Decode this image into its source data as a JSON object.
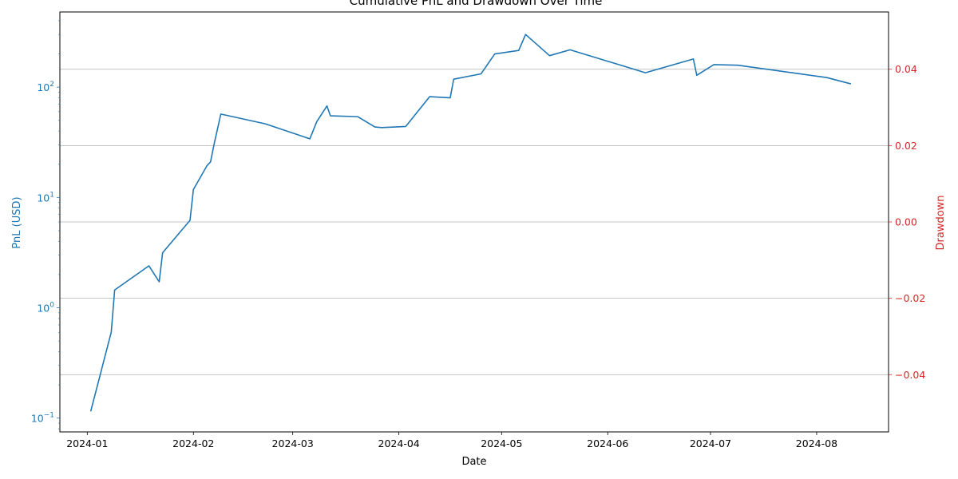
{
  "chart_data": {
    "type": "line",
    "title": "Cumulative PnL and Drawdown Over Time",
    "xlabel": "Date",
    "ylabel_left": "PnL (USD)",
    "ylabel_right": "Drawdown",
    "left_axis_scale": "log",
    "left_axis_color": "#1f77b4",
    "right_axis_color": "#d62728",
    "grid": "horizontal, right axis",
    "xlim": [
      "2023-12-24",
      "2024-08-22"
    ],
    "ylim_left": [
      0.075,
      480
    ],
    "ylim_right": [
      -0.055,
      0.055
    ],
    "x_ticks": [
      "2024-01",
      "2024-02",
      "2024-03",
      "2024-04",
      "2024-05",
      "2024-06",
      "2024-07",
      "2024-08"
    ],
    "y_ticks_left": [
      {
        "value": 0.1,
        "base": "10",
        "exp": "−1"
      },
      {
        "value": 1,
        "base": "10",
        "exp": "0"
      },
      {
        "value": 10,
        "base": "10",
        "exp": "1"
      },
      {
        "value": 100,
        "base": "10",
        "exp": "2"
      }
    ],
    "y_ticks_right": [
      {
        "value": -0.04,
        "label": "−0.04"
      },
      {
        "value": -0.02,
        "label": "−0.02"
      },
      {
        "value": 0.0,
        "label": "0.00"
      },
      {
        "value": 0.02,
        "label": "0.02"
      },
      {
        "value": 0.04,
        "label": "0.04"
      }
    ],
    "series": [
      {
        "axis": "left",
        "color": "#1f77b4",
        "points": [
          {
            "date": "2024-01-02",
            "value": 0.115
          },
          {
            "date": "2024-01-08",
            "value": 0.6
          },
          {
            "date": "2024-01-09",
            "value": 1.45
          },
          {
            "date": "2024-01-19",
            "value": 2.4
          },
          {
            "date": "2024-01-22",
            "value": 1.72
          },
          {
            "date": "2024-01-23",
            "value": 3.15
          },
          {
            "date": "2024-01-31",
            "value": 6.2
          },
          {
            "date": "2024-02-01",
            "value": 11.8
          },
          {
            "date": "2024-02-05",
            "value": 19.5
          },
          {
            "date": "2024-02-06",
            "value": 21.0
          },
          {
            "date": "2024-02-07",
            "value": 30.0
          },
          {
            "date": "2024-02-09",
            "value": 57.0
          },
          {
            "date": "2024-02-22",
            "value": 46.5
          },
          {
            "date": "2024-03-06",
            "value": 34.0
          },
          {
            "date": "2024-03-08",
            "value": 48.5
          },
          {
            "date": "2024-03-11",
            "value": 67.5
          },
          {
            "date": "2024-03-12",
            "value": 55.0
          },
          {
            "date": "2024-03-20",
            "value": 54.0
          },
          {
            "date": "2024-03-25",
            "value": 43.5
          },
          {
            "date": "2024-03-27",
            "value": 43.0
          },
          {
            "date": "2024-04-03",
            "value": 44.0
          },
          {
            "date": "2024-04-10",
            "value": 82.0
          },
          {
            "date": "2024-04-16",
            "value": 80.0
          },
          {
            "date": "2024-04-17",
            "value": 118.0
          },
          {
            "date": "2024-04-25",
            "value": 132.0
          },
          {
            "date": "2024-04-29",
            "value": 200.0
          },
          {
            "date": "2024-05-06",
            "value": 215.0
          },
          {
            "date": "2024-05-08",
            "value": 300.0
          },
          {
            "date": "2024-05-15",
            "value": 193.0
          },
          {
            "date": "2024-05-21",
            "value": 218.0
          },
          {
            "date": "2024-06-12",
            "value": 135.0
          },
          {
            "date": "2024-06-26",
            "value": 180.0
          },
          {
            "date": "2024-06-27",
            "value": 128.0
          },
          {
            "date": "2024-07-02",
            "value": 160.0
          },
          {
            "date": "2024-07-09",
            "value": 158.0
          },
          {
            "date": "2024-08-04",
            "value": 122.0
          },
          {
            "date": "2024-08-11",
            "value": 107.0
          }
        ]
      }
    ]
  }
}
